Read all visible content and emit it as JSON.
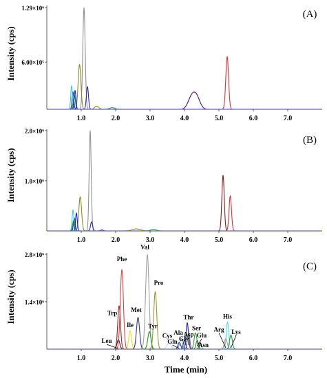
{
  "figure": {
    "x_axis_title": "Time (min)",
    "y_axis_title": "Intensity (cps)"
  },
  "chart_data": [
    {
      "type": "line",
      "panel_label": "(A)",
      "xlabel": "",
      "ylabel": "Intensity (cps)",
      "xlim": [
        0,
        8.0
      ],
      "ylim": [
        0,
        1300000
      ],
      "x_ticks": [
        "1.0",
        "2.0",
        "3.0",
        "4.0",
        "5.0",
        "6.0",
        "7.0"
      ],
      "y_ticks": [
        {
          "value": 600000,
          "label": "6.00×10⁵"
        },
        {
          "value": 1290000,
          "label": "1.29×10⁶"
        }
      ],
      "series": [
        {
          "color": "#909090",
          "peaks": [
            {
              "t": 1.08,
              "h": 1290000,
              "w": 0.035
            }
          ]
        },
        {
          "color": "#8c8c1e",
          "peaks": [
            {
              "t": 0.95,
              "h": 570000,
              "w": 0.04
            },
            {
              "t": 1.45,
              "h": 40000,
              "w": 0.06
            }
          ]
        },
        {
          "color": "#e03030",
          "peaks": [
            {
              "t": 5.24,
              "h": 670000,
              "w": 0.04
            }
          ]
        },
        {
          "color": "#5a1048",
          "peaks": [
            {
              "t": 4.2,
              "h": 140000,
              "w": 0.1
            },
            {
              "t": 4.35,
              "h": 150000,
              "w": 0.1
            }
          ]
        },
        {
          "color": "#2a2aa8",
          "peaks": [
            {
              "t": 0.76,
              "h": 220000,
              "w": 0.025
            },
            {
              "t": 1.18,
              "h": 290000,
              "w": 0.03
            }
          ]
        },
        {
          "color": "#30d0e0",
          "peaks": [
            {
              "t": 0.72,
              "h": 300000,
              "w": 0.025
            }
          ]
        },
        {
          "color": "#18a018",
          "peaks": [
            {
              "t": 0.8,
              "h": 180000,
              "w": 0.03
            },
            {
              "t": 1.9,
              "h": 20000,
              "w": 0.08
            }
          ]
        },
        {
          "color": "#1818e0",
          "peaks": [
            {
              "t": 0.82,
              "h": 240000,
              "w": 0.025
            }
          ]
        }
      ]
    },
    {
      "type": "line",
      "panel_label": "(B)",
      "xlabel": "",
      "ylabel": "Intensity (cps)",
      "xlim": [
        0,
        8.0
      ],
      "ylim": [
        0,
        2000000
      ],
      "x_ticks": [
        "1.0",
        "2.0",
        "3.0",
        "4.0",
        "5.0",
        "6.0",
        "7.0"
      ],
      "y_ticks": [
        {
          "value": 1000000,
          "label": "1.0×10⁶"
        },
        {
          "value": 2000000,
          "label": "2.0×10⁶"
        }
      ],
      "series": [
        {
          "color": "#909090",
          "peaks": [
            {
              "t": 1.26,
              "h": 2000000,
              "w": 0.03
            }
          ]
        },
        {
          "color": "#8c8c1e",
          "peaks": [
            {
              "t": 0.97,
              "h": 680000,
              "w": 0.04
            },
            {
              "t": 2.6,
              "h": 40000,
              "w": 0.12
            }
          ]
        },
        {
          "color": "#8b1a1a",
          "peaks": [
            {
              "t": 5.12,
              "h": 1110000,
              "w": 0.035
            }
          ]
        },
        {
          "color": "#e03030",
          "peaks": [
            {
              "t": 5.33,
              "h": 700000,
              "w": 0.035
            }
          ]
        },
        {
          "color": "#2a2aa8",
          "peaks": [
            {
              "t": 0.8,
              "h": 260000,
              "w": 0.025
            },
            {
              "t": 1.3,
              "h": 180000,
              "w": 0.03
            },
            {
              "t": 1.6,
              "h": 20000,
              "w": 0.04
            }
          ]
        },
        {
          "color": "#30d0e0",
          "peaks": [
            {
              "t": 0.76,
              "h": 420000,
              "w": 0.025
            }
          ]
        },
        {
          "color": "#18a018",
          "peaks": [
            {
              "t": 0.78,
              "h": 210000,
              "w": 0.03
            },
            {
              "t": 3.1,
              "h": 30000,
              "w": 0.08
            }
          ]
        },
        {
          "color": "#1818e0",
          "peaks": [
            {
              "t": 0.86,
              "h": 360000,
              "w": 0.025
            }
          ]
        }
      ]
    },
    {
      "type": "line",
      "panel_label": "(C)",
      "xlabel": "Time (min)",
      "ylabel": "Intensity (cps)",
      "xlim": [
        0,
        8.0
      ],
      "ylim": [
        0,
        2800000
      ],
      "x_ticks": [
        "1.0",
        "2.0",
        "3.0",
        "4.0",
        "5.0",
        "6.0",
        "7.0"
      ],
      "y_ticks": [
        {
          "value": 1400000,
          "label": "1.4×10⁶"
        },
        {
          "value": 2800000,
          "label": "2.8×10⁶"
        }
      ],
      "series": [
        {
          "name": "Leu",
          "color": "#2a2a2a",
          "peaks": [
            {
              "t": 2.08,
              "h": 280000,
              "w": 0.04
            }
          ]
        },
        {
          "name": "Trp",
          "color": "#b81818",
          "peaks": [
            {
              "t": 2.1,
              "h": 1280000,
              "w": 0.04
            }
          ]
        },
        {
          "name": "Phe",
          "color": "#e04040",
          "peaks": [
            {
              "t": 2.18,
              "h": 2350000,
              "w": 0.045
            }
          ]
        },
        {
          "name": "Ile",
          "color": "#e8e010",
          "peaks": [
            {
              "t": 2.42,
              "h": 540000,
              "w": 0.04
            }
          ]
        },
        {
          "name": "Met",
          "color": "#3030b0",
          "peaks": [
            {
              "t": 2.65,
              "h": 940000,
              "w": 0.045
            }
          ]
        },
        {
          "name": "Val",
          "color": "#a0a0a0",
          "peaks": [
            {
              "t": 2.92,
              "h": 2800000,
              "w": 0.05
            }
          ]
        },
        {
          "name": "Tyr",
          "color": "#18a018",
          "peaks": [
            {
              "t": 2.98,
              "h": 520000,
              "w": 0.045
            }
          ]
        },
        {
          "name": "Pro",
          "color": "#9a9a30",
          "peaks": [
            {
              "t": 3.15,
              "h": 1700000,
              "w": 0.045
            }
          ]
        },
        {
          "name": "Cys",
          "color": "#b8e0f0",
          "peaks": [
            {
              "t": 3.55,
              "h": 180000,
              "w": 0.06
            }
          ]
        },
        {
          "name": "Gln",
          "color": "#183878",
          "peaks": [
            {
              "t": 3.85,
              "h": 200000,
              "w": 0.04
            }
          ]
        },
        {
          "name": "Ala",
          "color": "#60a0e0",
          "peaks": [
            {
              "t": 3.9,
              "h": 320000,
              "w": 0.04
            }
          ]
        },
        {
          "name": "Gly",
          "color": "#282878",
          "peaks": [
            {
              "t": 4.0,
              "h": 260000,
              "w": 0.035
            }
          ]
        },
        {
          "name": "Thr",
          "color": "#2020a0",
          "peaks": [
            {
              "t": 4.08,
              "h": 780000,
              "w": 0.035
            }
          ]
        },
        {
          "name": "Asp",
          "color": "#707070",
          "peaks": [
            {
              "t": 4.12,
              "h": 480000,
              "w": 0.035
            }
          ]
        },
        {
          "name": "Ser",
          "color": "#30a030",
          "peaks": [
            {
              "t": 4.32,
              "h": 480000,
              "w": 0.04
            }
          ]
        },
        {
          "name": "Glu",
          "color": "#606060",
          "peaks": [
            {
              "t": 4.37,
              "h": 260000,
              "w": 0.035
            }
          ]
        },
        {
          "name": "Asn",
          "color": "#38a038",
          "peaks": [
            {
              "t": 4.45,
              "h": 180000,
              "w": 0.035
            }
          ]
        },
        {
          "name": "Arg",
          "color": "#e08080",
          "peaks": [
            {
              "t": 5.2,
              "h": 320000,
              "w": 0.04
            }
          ]
        },
        {
          "name": "His",
          "color": "#40e0f0",
          "peaks": [
            {
              "t": 5.25,
              "h": 800000,
              "w": 0.035
            }
          ]
        },
        {
          "name": "Lys",
          "color": "#2aa02a",
          "peaks": [
            {
              "t": 5.35,
              "h": 420000,
              "w": 0.04
            }
          ]
        }
      ],
      "annotations": [
        {
          "text": "Leu",
          "t": 1.74,
          "v": 180000,
          "point_t": 2.08,
          "point_v": 20000
        },
        {
          "text": "Trp",
          "t": 1.9,
          "v": 1000000
        },
        {
          "text": "Phe",
          "t": 2.18,
          "v": 2600000
        },
        {
          "text": "Ile",
          "t": 2.42,
          "v": 650000
        },
        {
          "text": "Met",
          "t": 2.6,
          "v": 1100000
        },
        {
          "text": "Val",
          "t": 2.85,
          "v": 2950000
        },
        {
          "text": "Tyr",
          "t": 3.08,
          "v": 620000
        },
        {
          "text": "Pro",
          "t": 3.25,
          "v": 1900000
        },
        {
          "text": "Cys",
          "t": 3.5,
          "v": 330000
        },
        {
          "text": "Gln",
          "t": 3.65,
          "v": 160000,
          "point_t": 3.85,
          "point_v": 20000
        },
        {
          "text": "Ala",
          "t": 3.82,
          "v": 430000
        },
        {
          "text": "Gly",
          "t": 3.98,
          "v": 240000
        },
        {
          "text": "Thr",
          "t": 4.12,
          "v": 880000
        },
        {
          "text": "Asp",
          "t": 4.12,
          "v": 380000,
          "point_t": 4.12,
          "point_v": 120000
        },
        {
          "text": "Ser",
          "t": 4.35,
          "v": 560000
        },
        {
          "text": "Glu",
          "t": 4.5,
          "v": 340000,
          "point_t": 4.37,
          "point_v": 100000
        },
        {
          "text": "Asn",
          "t": 4.55,
          "v": 60000
        },
        {
          "text": "Arg",
          "t": 5.0,
          "v": 520000,
          "point_t": 5.2,
          "point_v": 40000
        },
        {
          "text": "His",
          "t": 5.25,
          "v": 900000
        },
        {
          "text": "Lys",
          "t": 5.5,
          "v": 450000,
          "point_t": 5.35,
          "point_v": 40000
        }
      ]
    }
  ]
}
